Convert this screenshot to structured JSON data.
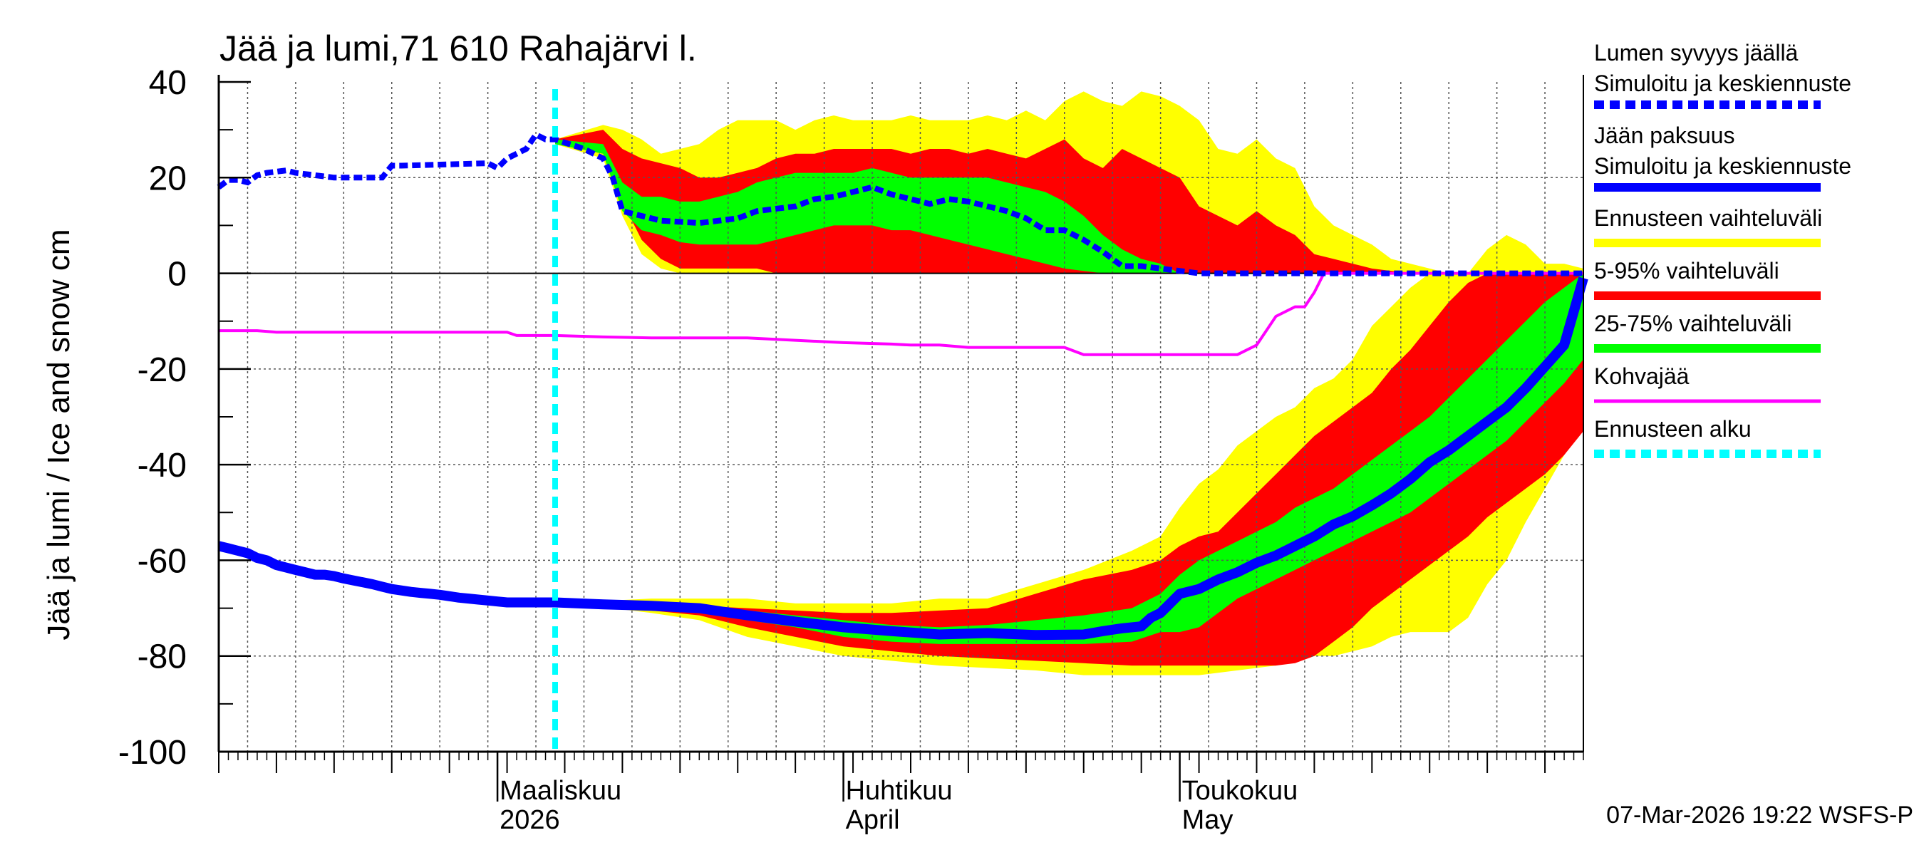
{
  "chart_data": {
    "type": "area",
    "title": "Jää ja lumi,71 610 Rahajärvi l.",
    "ylabel": "Jää ja lumi / Ice and snow    cm",
    "ylim": [
      -100,
      40
    ],
    "yticks": [
      40,
      20,
      0,
      -20,
      -40,
      -60,
      -80,
      -100
    ],
    "grid": true,
    "x_range_days": [
      0,
      142
    ],
    "month_labels": [
      {
        "day": 29,
        "line1": "Maaliskuu",
        "line2": "2026"
      },
      {
        "day": 65,
        "line1": "Huhtikuu",
        "line2": "April"
      },
      {
        "day": 100,
        "line1": "Toukokuu",
        "line2": "May"
      }
    ],
    "forecast_start_day": 35,
    "footer": "07-Mar-2026 19:22 WSFS-P",
    "colors": {
      "yellow": "#ffff00",
      "red": "#ff0000",
      "green": "#00ff00",
      "blue": "#0000ff",
      "magenta": "#ff00ff",
      "cyan": "#00ffff"
    },
    "legend": [
      {
        "line1": "Lumen syvyys jäällä",
        "line2": "Simuloitu ja keskiennuste",
        "color": "#0000ff",
        "style": "dashed"
      },
      {
        "line1": "Jään paksuus",
        "line2": "Simuloitu ja keskiennuste",
        "color": "#0000ff",
        "style": "solid"
      },
      {
        "line1": "Ennusteen vaihteluväli",
        "color": "#ffff00",
        "style": "solid"
      },
      {
        "line1": "5-95% vaihteluväli",
        "color": "#ff0000",
        "style": "solid"
      },
      {
        "line1": "25-75% vaihteluväli",
        "color": "#00ff00",
        "style": "solid"
      },
      {
        "line1": "Kohvajää",
        "color": "#ff00ff",
        "style": "solid"
      },
      {
        "line1": "Ennusteen alku",
        "color": "#00ffff",
        "style": "dashed"
      }
    ],
    "series": {
      "snow_mean": {
        "name": "Lumen syvyys jäällä",
        "x": [
          0,
          1,
          2,
          3,
          4,
          5,
          7,
          8,
          10,
          12,
          14,
          17,
          18,
          19,
          28,
          29,
          30,
          31,
          32,
          33,
          34,
          35,
          38,
          40,
          41,
          42,
          44,
          46,
          50,
          54,
          56,
          60,
          62,
          64,
          66,
          68,
          70,
          72,
          74,
          76,
          78,
          80,
          82,
          84,
          86,
          88,
          90,
          92,
          94,
          96,
          98,
          100,
          102,
          104,
          108,
          115,
          125,
          142
        ],
        "values": [
          18,
          19.5,
          19.5,
          19,
          20.5,
          21,
          21.5,
          21,
          20.5,
          20,
          20,
          20,
          22.5,
          22.5,
          23,
          22,
          24,
          25,
          26,
          29,
          28,
          28,
          26,
          24,
          20,
          13,
          12,
          11,
          10.5,
          11.5,
          13,
          14,
          15.5,
          16,
          17,
          18,
          16.5,
          15.5,
          14.5,
          15.5,
          15,
          14,
          13,
          11.5,
          9,
          9,
          7,
          4.5,
          1.5,
          1.5,
          1,
          0.5,
          0,
          0,
          0,
          0,
          0,
          0
        ]
      },
      "snow_range_full": {
        "x": [
          35,
          40,
          42,
          44,
          46,
          48,
          50,
          52,
          54,
          56,
          58,
          60,
          62,
          64,
          66,
          68,
          70,
          72,
          74,
          76,
          78,
          80,
          82,
          84,
          86,
          88,
          90,
          92,
          94,
          96,
          98,
          100,
          102,
          104,
          106,
          108,
          110,
          112,
          114,
          116,
          118,
          120,
          122,
          124,
          126,
          128,
          130,
          132,
          134,
          136,
          138,
          140,
          142
        ],
        "upper": [
          28,
          31,
          30,
          28,
          25,
          26,
          27,
          30,
          32,
          32,
          32,
          30,
          32,
          33,
          32,
          32,
          32,
          33,
          32,
          32,
          32,
          33,
          32,
          34,
          32,
          36,
          38,
          36,
          35,
          38,
          37,
          35,
          32,
          26,
          25,
          28,
          24,
          22,
          14,
          10,
          8,
          6,
          3,
          2,
          1,
          0,
          0,
          5,
          8,
          6,
          2,
          2,
          1
        ],
        "lower": [
          27,
          24,
          12,
          4,
          1,
          0,
          0,
          0,
          0,
          0,
          0,
          0,
          0,
          0,
          0,
          0,
          0,
          0,
          0,
          0,
          0,
          0,
          0,
          0,
          0,
          0,
          0,
          0,
          0,
          0,
          0,
          0,
          0,
          0,
          0,
          0,
          0,
          0,
          0,
          0,
          0,
          0,
          0,
          0,
          0,
          0,
          0,
          0,
          0,
          0,
          0,
          0,
          0
        ]
      },
      "snow_5_95": {
        "x": [
          35,
          40,
          42,
          44,
          46,
          48,
          50,
          52,
          54,
          56,
          58,
          60,
          62,
          64,
          66,
          68,
          70,
          72,
          74,
          76,
          78,
          80,
          82,
          84,
          86,
          88,
          90,
          92,
          94,
          96,
          98,
          100,
          102,
          104,
          106,
          108,
          110,
          112,
          114,
          116,
          118,
          120,
          122,
          124,
          126,
          128,
          130,
          132,
          134,
          136,
          138,
          140,
          142
        ],
        "upper": [
          28,
          30,
          26,
          24,
          23,
          22,
          20,
          20,
          21,
          22,
          24,
          25,
          25,
          26,
          26,
          26,
          26,
          25,
          26,
          26,
          25,
          26,
          25,
          24,
          26,
          28,
          24,
          22,
          26,
          24,
          22,
          20,
          14,
          12,
          10,
          13,
          10,
          8,
          4,
          3,
          2,
          1,
          0.5,
          0,
          0,
          0,
          0,
          0,
          0,
          0,
          0,
          0,
          0
        ],
        "lower": [
          27,
          25,
          15,
          7,
          3,
          1,
          1,
          1,
          1,
          1,
          0,
          0,
          0,
          0,
          0,
          0,
          0,
          0,
          0,
          0,
          0,
          0,
          0,
          0,
          0,
          0,
          0,
          0,
          0,
          0,
          0,
          0,
          0,
          0,
          0,
          0,
          0,
          0,
          0,
          0,
          0,
          0,
          0,
          0,
          0,
          0,
          0,
          0,
          0,
          0,
          0,
          0,
          0
        ]
      },
      "snow_25_75": {
        "x": [
          35,
          40,
          42,
          44,
          46,
          48,
          50,
          52,
          54,
          56,
          58,
          60,
          62,
          64,
          66,
          68,
          70,
          72,
          74,
          76,
          78,
          80,
          82,
          84,
          86,
          88,
          90,
          92,
          94,
          96,
          98,
          100
        ],
        "upper": [
          28,
          27,
          19,
          16,
          16,
          15,
          15,
          16,
          17,
          19,
          20,
          21,
          21,
          21,
          21,
          22,
          21,
          20,
          20,
          20,
          20,
          20,
          19,
          18,
          17,
          15,
          12,
          8,
          5,
          3,
          2,
          0
        ],
        "lower": [
          27,
          25,
          13,
          9,
          8,
          6.5,
          6,
          6,
          6,
          6,
          7,
          8,
          9,
          10,
          10,
          10,
          9,
          9,
          8,
          7,
          6,
          5,
          4,
          3,
          2,
          1,
          0.5,
          0,
          0,
          0,
          0,
          0
        ]
      },
      "ice_mean": {
        "name": "Jään paksuus",
        "x": [
          0,
          1,
          2,
          3,
          4,
          5,
          6,
          7,
          8,
          9,
          10,
          11,
          12,
          13,
          14,
          15,
          16,
          17,
          18,
          19,
          20,
          21,
          22,
          23,
          24,
          25,
          26,
          27,
          28,
          29,
          30,
          31,
          32,
          33,
          35,
          40,
          45,
          50,
          55,
          60,
          65,
          70,
          75,
          80,
          85,
          90,
          92,
          94,
          96,
          97,
          98,
          99,
          100,
          102,
          104,
          106,
          108,
          110,
          112,
          114,
          116,
          118,
          120,
          122,
          124,
          126,
          128,
          130,
          132,
          134,
          136,
          138,
          140,
          142
        ],
        "values": [
          -57,
          -57.5,
          -58,
          -58.5,
          -59.5,
          -60,
          -61,
          -61.5,
          -62,
          -62.5,
          -63,
          -63,
          -63.3,
          -63.8,
          -64.2,
          -64.6,
          -65,
          -65.5,
          -66,
          -66.3,
          -66.6,
          -66.8,
          -67,
          -67.2,
          -67.5,
          -67.8,
          -68,
          -68.2,
          -68.4,
          -68.6,
          -68.8,
          -68.8,
          -68.8,
          -68.8,
          -68.8,
          -69.2,
          -69.5,
          -70,
          -71.5,
          -72.8,
          -74,
          -74.8,
          -75.5,
          -75.2,
          -75.6,
          -75.5,
          -74.8,
          -74.2,
          -73.8,
          -72,
          -71,
          -69,
          -67,
          -66,
          -64,
          -62.5,
          -60.5,
          -59,
          -57,
          -55,
          -52.5,
          -50.8,
          -48.5,
          -46,
          -43,
          -39.5,
          -37,
          -34,
          -31,
          -28,
          -24,
          -19.5,
          -15,
          -1
        ]
      },
      "ice_range_full": {
        "x": [
          35,
          40,
          45,
          50,
          55,
          60,
          65,
          70,
          75,
          80,
          85,
          90,
          95,
          98,
          100,
          102,
          104,
          106,
          108,
          110,
          112,
          114,
          116,
          118,
          120,
          122,
          124,
          126,
          128,
          130,
          132,
          134,
          136,
          138,
          140,
          142
        ],
        "upper": [
          -68.8,
          -68.5,
          -68,
          -68,
          -68,
          -69,
          -69,
          -69,
          -68,
          -68,
          -65,
          -62,
          -58,
          -55,
          -49,
          -44,
          -41,
          -36,
          -33,
          -30,
          -28,
          -24,
          -22,
          -18,
          -11,
          -7,
          -3,
          0,
          0,
          0,
          0,
          0,
          0,
          0,
          0,
          0
        ],
        "lower": [
          -68.8,
          -69.8,
          -71,
          -72.5,
          -76,
          -78,
          -80,
          -81,
          -82,
          -82.5,
          -83,
          -84,
          -84,
          -84,
          -84,
          -84,
          -83.5,
          -83,
          -82.5,
          -82,
          -81,
          -80,
          -80,
          -79,
          -78,
          -76,
          -75,
          -75,
          -75,
          -72,
          -65,
          -60,
          -52,
          -45,
          -38,
          -31
        ]
      },
      "ice_5_95": {
        "x": [
          35,
          40,
          45,
          50,
          55,
          60,
          65,
          70,
          75,
          80,
          85,
          90,
          95,
          98,
          100,
          102,
          104,
          106,
          108,
          110,
          112,
          114,
          116,
          118,
          120,
          122,
          124,
          126,
          128,
          130,
          132,
          134,
          136,
          138,
          140,
          142
        ],
        "upper": [
          -68.8,
          -69,
          -69.3,
          -69.5,
          -70,
          -70.5,
          -71,
          -71,
          -70.5,
          -70,
          -67,
          -64,
          -62,
          -60,
          -57,
          -55,
          -54,
          -50,
          -46,
          -42,
          -38,
          -34,
          -31,
          -28,
          -25,
          -20,
          -16,
          -11,
          -6,
          -2,
          0,
          0,
          0,
          0,
          0,
          0
        ],
        "lower": [
          -68.8,
          -69.5,
          -70.5,
          -71.5,
          -74,
          -76,
          -78,
          -79,
          -80,
          -80.5,
          -81,
          -81.5,
          -82,
          -82,
          -82,
          -82,
          -82,
          -82,
          -82,
          -82,
          -81.5,
          -80,
          -77,
          -74,
          -70,
          -67,
          -64,
          -61,
          -58,
          -55,
          -51,
          -48,
          -45,
          -42,
          -38,
          -33
        ]
      },
      "ice_25_75": {
        "x": [
          35,
          40,
          45,
          50,
          55,
          60,
          65,
          70,
          75,
          80,
          85,
          90,
          95,
          98,
          100,
          102,
          104,
          106,
          108,
          110,
          112,
          114,
          116,
          118,
          120,
          122,
          124,
          126,
          128,
          130,
          132,
          134,
          136,
          138,
          140,
          142
        ],
        "upper": [
          -68.8,
          -69,
          -69.2,
          -69.5,
          -70.5,
          -71.5,
          -72.5,
          -73.5,
          -74,
          -73.5,
          -72.5,
          -71.5,
          -70,
          -67,
          -63,
          -60,
          -58,
          -56,
          -54,
          -52,
          -49,
          -47,
          -45,
          -42,
          -39,
          -36,
          -33,
          -30,
          -26,
          -22,
          -18,
          -14,
          -10,
          -6,
          -3,
          0
        ],
        "lower": [
          -68.8,
          -69.3,
          -70,
          -70.5,
          -72.5,
          -74,
          -76,
          -77,
          -77.5,
          -77.5,
          -77.5,
          -77.5,
          -77,
          -75,
          -75,
          -74,
          -71,
          -68,
          -66,
          -64,
          -62,
          -60,
          -58,
          -56,
          -54,
          -52,
          -50,
          -47,
          -44,
          -41,
          -38,
          -35,
          -31,
          -27,
          -23,
          -18
        ]
      },
      "kohva": {
        "name": "Kohvajää",
        "x": [
          0,
          4,
          6,
          30,
          31,
          35,
          40,
          45,
          50,
          55,
          60,
          65,
          70,
          72,
          75,
          78,
          80,
          88,
          90,
          100,
          106,
          108,
          110,
          112,
          113,
          114,
          115,
          142
        ],
        "values": [
          -12,
          -12,
          -12.3,
          -12.3,
          -13,
          -13,
          -13.3,
          -13.5,
          -13.5,
          -13.5,
          -14,
          -14.5,
          -14.8,
          -15,
          -15,
          -15.5,
          -15.5,
          -15.5,
          -17,
          -17,
          -17,
          -15,
          -9,
          -7,
          -7,
          -4,
          0,
          0
        ]
      }
    }
  }
}
